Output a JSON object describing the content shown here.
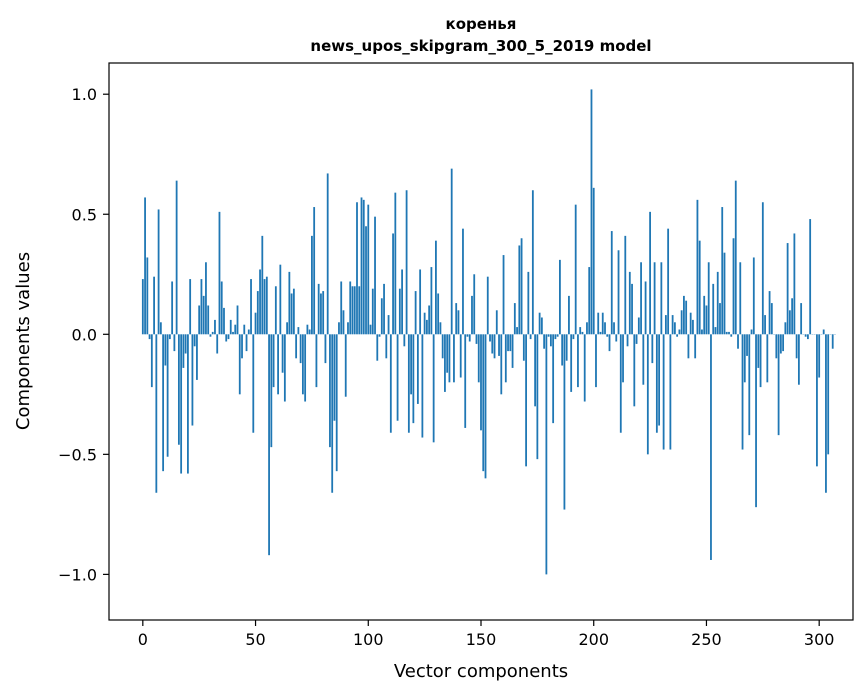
{
  "chart_data": {
    "type": "bar",
    "title": "коренья",
    "subtitle": "news_upos_skipgram_300_5_2019 model",
    "xlabel": "Vector components",
    "ylabel": "Components values",
    "xlim": [
      -15,
      315
    ],
    "ylim": [
      -1.19,
      1.13
    ],
    "xticks": [
      0,
      50,
      100,
      150,
      200,
      250,
      300
    ],
    "xtick_labels": [
      "0",
      "50",
      "100",
      "150",
      "200",
      "250",
      "300"
    ],
    "yticks": [
      -1.0,
      -0.5,
      0.0,
      0.5,
      1.0
    ],
    "ytick_labels": [
      "−1.0",
      "−0.5",
      "0.0",
      "0.5",
      "1.0"
    ],
    "bar_color": "#1f77b4",
    "grid": false,
    "legend": "none",
    "x_start": 0,
    "values": [
      0.23,
      0.57,
      0.32,
      -0.02,
      -0.22,
      0.24,
      -0.66,
      0.52,
      0.05,
      -0.57,
      -0.13,
      -0.51,
      -0.02,
      0.22,
      -0.07,
      0.64,
      -0.46,
      -0.58,
      -0.14,
      -0.08,
      -0.58,
      0.23,
      -0.38,
      -0.05,
      -0.19,
      0.12,
      0.23,
      0.16,
      0.3,
      0.12,
      -0.01,
      0.01,
      0.06,
      -0.08,
      0.51,
      0.22,
      0.11,
      -0.03,
      -0.02,
      0.06,
      0.01,
      0.04,
      0.12,
      -0.25,
      -0.1,
      0.04,
      -0.07,
      0.02,
      0.23,
      -0.41,
      0.09,
      0.18,
      0.27,
      0.41,
      0.23,
      0.24,
      -0.92,
      -0.47,
      -0.22,
      0.2,
      -0.25,
      0.29,
      -0.16,
      -0.28,
      0.05,
      0.26,
      0.17,
      0.19,
      -0.1,
      0.03,
      -0.12,
      -0.25,
      -0.28,
      0.04,
      0.02,
      0.41,
      0.53,
      -0.22,
      0.21,
      0.17,
      0.18,
      -0.12,
      0.67,
      -0.47,
      -0.66,
      -0.36,
      -0.57,
      0.05,
      0.22,
      0.1,
      -0.26,
      0.05,
      0.22,
      0.2,
      0.2,
      0.55,
      0.2,
      0.57,
      0.56,
      0.45,
      0.54,
      0.04,
      0.19,
      0.49,
      -0.11,
      -0.01,
      0.15,
      0.21,
      -0.1,
      0.08,
      -0.41,
      0.42,
      0.59,
      -0.36,
      0.19,
      0.27,
      -0.05,
      0.6,
      -0.41,
      -0.25,
      -0.37,
      0.18,
      -0.29,
      0.27,
      -0.43,
      0.09,
      0.06,
      0.12,
      0.28,
      -0.45,
      0.39,
      0.17,
      0.05,
      -0.1,
      -0.24,
      -0.16,
      -0.2,
      0.69,
      -0.2,
      0.13,
      0.1,
      -0.18,
      0.44,
      -0.39,
      -0.01,
      -0.03,
      0.16,
      0.25,
      -0.04,
      -0.2,
      -0.4,
      -0.57,
      -0.6,
      0.24,
      -0.03,
      -0.08,
      -0.1,
      0.1,
      -0.09,
      -0.25,
      0.33,
      -0.2,
      -0.07,
      -0.07,
      -0.14,
      0.13,
      0.03,
      0.37,
      0.4,
      -0.11,
      -0.55,
      0.26,
      -0.02,
      0.6,
      -0.3,
      -0.52,
      0.09,
      0.07,
      -0.06,
      -1.0,
      -0.01,
      -0.05,
      -0.37,
      -0.02,
      -0.01,
      0.31,
      -0.13,
      -0.73,
      -0.11,
      0.16,
      -0.24,
      -0.02,
      0.54,
      -0.22,
      0.03,
      0.01,
      -0.28,
      0.05,
      0.28,
      1.02,
      0.61,
      -0.22,
      0.09,
      0.01,
      0.09,
      0.05,
      -0.01,
      -0.07,
      0.43,
      0.05,
      -0.03,
      0.35,
      -0.41,
      -0.2,
      0.41,
      -0.05,
      0.26,
      0.21,
      -0.3,
      -0.04,
      0.07,
      0.3,
      -0.21,
      0.22,
      -0.5,
      0.51,
      -0.12,
      0.3,
      -0.41,
      -0.38,
      0.3,
      -0.48,
      0.08,
      0.44,
      -0.48,
      0.08,
      0.05,
      -0.01,
      0.02,
      0.1,
      0.16,
      0.14,
      -0.1,
      0.09,
      0.06,
      -0.1,
      0.56,
      0.39,
      0.02,
      0.16,
      0.12,
      0.3,
      -0.94,
      0.21,
      0.03,
      0.26,
      0.13,
      0.53,
      0.34,
      0.01,
      0.01,
      -0.01,
      0.4,
      0.64,
      -0.06,
      0.3,
      -0.48,
      -0.2,
      -0.09,
      -0.42,
      0.02,
      0.32,
      -0.72,
      -0.14,
      -0.22,
      0.55,
      0.08,
      -0.2,
      0.18,
      0.13,
      0.0,
      -0.1,
      -0.42,
      -0.08,
      -0.07,
      0.05,
      0.38,
      0.1,
      0.15,
      0.42,
      -0.1,
      -0.21,
      0.13,
      0.0,
      -0.01,
      -0.02,
      0.48,
      0.0,
      0.0,
      -0.55,
      -0.18,
      0.0,
      0.02,
      -0.66,
      -0.5,
      0.0,
      -0.06,
      0.0
    ]
  }
}
